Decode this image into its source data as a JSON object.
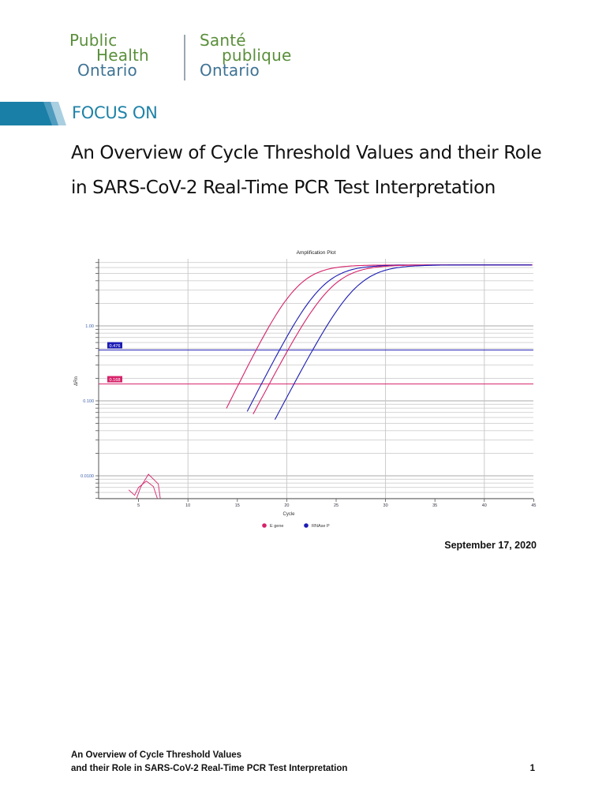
{
  "header": {
    "logo": {
      "en": {
        "line1": "Public",
        "line2": "Health",
        "line3": "Ontario"
      },
      "fr": {
        "line1": "Santé",
        "line2": "publique",
        "line3": "Ontario"
      }
    },
    "section_label": "FOCUS ON"
  },
  "document": {
    "title": "An Overview of Cycle Threshold Values and their Role in SARS-CoV-2 Real-Time PCR Test Interpretation",
    "date": "September 17, 2020"
  },
  "footer": {
    "line1": "An Overview of Cycle Threshold Values",
    "line2": "and their Role in SARS-CoV-2 Real-Time PCR Test Interpretation",
    "page_number": "1"
  },
  "colors": {
    "brand_green": "#5a8f3a",
    "brand_blue": "#3f7394",
    "focus_blue": "#1f83a8",
    "e_gene": "#d6226a",
    "rnase_p": "#1b1bb5"
  },
  "chart_data": {
    "type": "line",
    "title": "Amplification Plot",
    "xlabel": "Cycle",
    "ylabel": "ΔRn",
    "xlim": [
      1,
      45
    ],
    "ylim_log": [
      0.005,
      10
    ],
    "y_scale": "log",
    "x_ticks": [
      5,
      10,
      15,
      20,
      25,
      30,
      35,
      40,
      45
    ],
    "y_ticks": [
      {
        "value": 1.0,
        "label": "1.00"
      },
      {
        "value": 0.1,
        "label": "0.100"
      },
      {
        "value": 0.01,
        "label": "0.0100"
      }
    ],
    "grid": true,
    "legend": [
      {
        "label": "E gene",
        "color": "#d6226a"
      },
      {
        "label": "RNAse P",
        "color": "#1b1bb5"
      }
    ],
    "thresholds": [
      {
        "name": "RNAse P",
        "value": 0.476,
        "label": "0.476",
        "color": "#1b1bb5"
      },
      {
        "name": "E gene",
        "value": 0.168,
        "label": "0.168",
        "color": "#d6226a"
      }
    ],
    "series": [
      {
        "name": "E gene (sample 1)",
        "color": "#d6226a",
        "start": 14.5,
        "mid": 21.0,
        "plateau": 6.5,
        "slope": 0.62
      },
      {
        "name": "RNAse P (sample 1)",
        "color": "#1b1bb5",
        "start": 16.6,
        "mid": 23.5,
        "plateau": 6.5,
        "slope": 0.6
      },
      {
        "name": "E gene (sample 2)",
        "color": "#d6226a",
        "start": 17.2,
        "mid": 24.5,
        "plateau": 6.5,
        "slope": 0.58
      },
      {
        "name": "RNAse P (sample 2)",
        "color": "#1b1bb5",
        "start": 19.4,
        "mid": 27.0,
        "plateau": 6.5,
        "slope": 0.58
      }
    ],
    "noise": [
      {
        "color": "#d6226a",
        "points": [
          [
            4.0,
            0.0065
          ],
          [
            4.6,
            0.0055
          ],
          [
            5.0,
            0.007
          ],
          [
            5.8,
            0.0085
          ],
          [
            6.5,
            0.0072
          ],
          [
            6.9,
            0.005
          ]
        ]
      },
      {
        "color": "#d6226a",
        "points": [
          [
            4.8,
            0.005
          ],
          [
            5.2,
            0.007
          ],
          [
            6.0,
            0.0105
          ],
          [
            7.0,
            0.0078
          ],
          [
            7.2,
            0.005
          ]
        ]
      }
    ]
  }
}
